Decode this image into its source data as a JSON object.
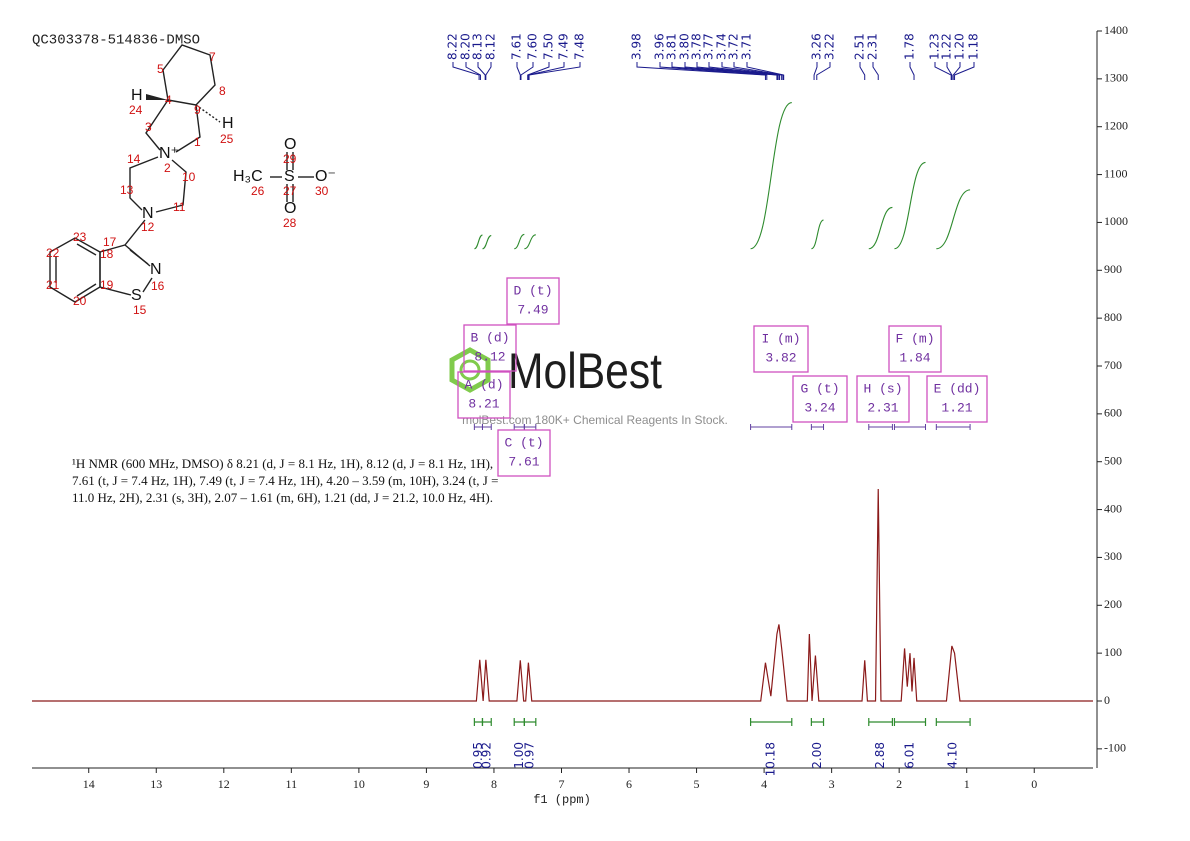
{
  "chart_data": {
    "type": "line",
    "title": "QC303378-514836-DMSO",
    "x_label": "f1 (ppm)",
    "description": "¹H NMR (600 MHz, DMSO) δ 8.21 (d, J = 8.1 Hz, 1H), 8.12 (d, J = 8.1 Hz, 1H), 7.61 (t, J = 7.4 Hz, 1H), 7.49 (t, J = 7.4 Hz, 1H), 4.20 – 3.59 (m, 10H), 3.24 (t, J = 11.0 Hz, 2H), 2.31 (s, 3H), 2.07 – 1.61 (m, 6H), 1.21 (dd, J = 21.2, 10.0 Hz, 4H).",
    "color": "#8b1a1a",
    "x": [
      14.84,
      8.26,
      8.21,
      8.16,
      8.12,
      8.07,
      7.66,
      7.61,
      7.56,
      7.53,
      7.49,
      7.44,
      4.05,
      3.98,
      3.9,
      3.81,
      3.78,
      3.74,
      3.71,
      3.66,
      3.36,
      3.33,
      3.29,
      3.24,
      3.19,
      2.55,
      2.51,
      2.47,
      2.35,
      2.31,
      2.27,
      1.97,
      1.92,
      1.88,
      1.84,
      1.81,
      1.78,
      1.74,
      1.3,
      1.22,
      1.18,
      1.1,
      -0.87
    ],
    "values": [
      0,
      0,
      86,
      0,
      86,
      0,
      0,
      85,
      0,
      0,
      80,
      0,
      0,
      80,
      10,
      140,
      160,
      110,
      70,
      0,
      0,
      140,
      0,
      95,
      0,
      0,
      85,
      0,
      0,
      443,
      0,
      0,
      110,
      30,
      100,
      20,
      90,
      0,
      0,
      115,
      100,
      0,
      0
    ],
    "xlim": [
      14.84,
      -0.87
    ],
    "xticks": [
      14,
      13,
      12,
      11,
      10,
      9,
      8,
      7,
      6,
      5,
      4,
      3,
      2,
      1,
      0
    ],
    "ylim": [
      -140,
      1400
    ],
    "yticks": [
      -100,
      0,
      100,
      200,
      300,
      400,
      500,
      600,
      700,
      800,
      900,
      1000,
      1100,
      1200,
      1300,
      1400
    ],
    "peak_color": "#1a1a8c",
    "peak_labels": [
      {
        "value": 8.22,
        "label": "8.22"
      },
      {
        "value": 8.2,
        "label": "8.20"
      },
      {
        "value": 8.13,
        "label": "8.13"
      },
      {
        "value": 8.12,
        "label": "8.12"
      },
      {
        "value": 7.61,
        "label": "7.61"
      },
      {
        "value": 7.6,
        "label": "7.60"
      },
      {
        "value": 7.5,
        "label": "7.50"
      },
      {
        "value": 7.49,
        "label": "7.49"
      },
      {
        "value": 7.48,
        "label": "7.48"
      },
      {
        "value": 3.98,
        "label": "3.98"
      },
      {
        "value": 3.96,
        "label": "3.96"
      },
      {
        "value": 3.81,
        "label": "3.81"
      },
      {
        "value": 3.8,
        "label": "3.80"
      },
      {
        "value": 3.78,
        "label": "3.78"
      },
      {
        "value": 3.77,
        "label": "3.77"
      },
      {
        "value": 3.74,
        "label": "3.74"
      },
      {
        "value": 3.72,
        "label": "3.72"
      },
      {
        "value": 3.71,
        "label": "3.71"
      },
      {
        "value": 3.26,
        "label": "3.26"
      },
      {
        "value": 3.22,
        "label": "3.22"
      },
      {
        "value": 2.51,
        "label": "2.51"
      },
      {
        "value": 2.31,
        "label": "2.31"
      },
      {
        "value": 1.78,
        "label": "1.78"
      },
      {
        "value": 1.23,
        "label": "1.23"
      },
      {
        "value": 1.22,
        "label": "1.22"
      },
      {
        "value": 1.2,
        "label": "1.20"
      },
      {
        "value": 1.18,
        "label": "1.18"
      }
    ],
    "integrals": {
      "color": "#2e8b2e",
      "ranges": [
        [
          8.29,
          8.17
        ],
        [
          8.17,
          8.04
        ],
        [
          7.7,
          7.55
        ],
        [
          7.55,
          7.38
        ],
        [
          4.2,
          3.59
        ],
        [
          3.3,
          3.12
        ],
        [
          2.45,
          2.1
        ],
        [
          2.07,
          1.61
        ],
        [
          1.45,
          0.95
        ]
      ],
      "values": [
        0.95,
        0.92,
        1,
        0.97,
        10.18,
        2,
        2.88,
        6.01,
        4.1
      ],
      "value_labels": [
        "0.95",
        "0.92",
        "1.00",
        "0.97",
        "10.18",
        "2.00",
        "2.88",
        "6.01",
        "4.10"
      ]
    },
    "multiplet_color": "#d050c0",
    "multiplets": [
      {
        "label": "D (t)",
        "value": 7.49
      },
      {
        "label": "B (d)",
        "value": 8.12
      },
      {
        "label": "A (d)",
        "value": 8.21
      },
      {
        "label": "C (t)",
        "value": 7.61
      },
      {
        "label": "I (m)",
        "value": 3.82
      },
      {
        "label": "G (t)",
        "value": 3.24
      },
      {
        "label": "H (s)",
        "value": 2.31
      },
      {
        "label": "F (m)",
        "value": 1.84
      },
      {
        "label": "E (dd)",
        "value": 1.21
      }
    ]
  },
  "watermark": {
    "logo": "MolBest",
    "tagline": "molBest.com 180K+ Chemical Reagents In Stock."
  },
  "structure": {
    "atom_numbers": [
      "5",
      "7",
      "8",
      "4",
      "9",
      "3",
      "1",
      "24",
      "25",
      "14",
      "2",
      "10",
      "13",
      "11",
      "12",
      "23",
      "17",
      "18",
      "22",
      "21",
      "19",
      "16",
      "20",
      "15",
      "29",
      "27",
      "30",
      "26",
      "28"
    ],
    "atom_symbols": [
      "H",
      "H",
      "N⁺",
      "N",
      "N",
      "S",
      "H₃C",
      "S",
      "O⁻",
      "O",
      "O"
    ]
  }
}
